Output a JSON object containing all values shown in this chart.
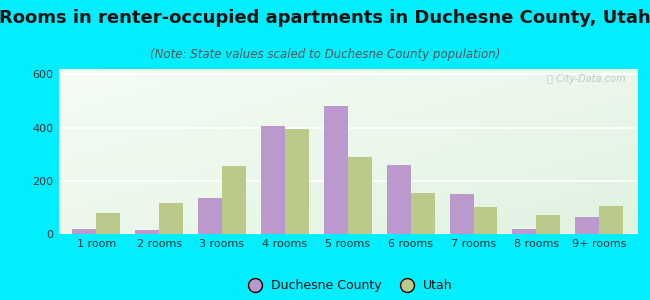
{
  "title": "Rooms in renter-occupied apartments in Duchesne County, Utah",
  "subtitle": "(Note: State values scaled to Duchesne County population)",
  "categories": [
    "1 room",
    "2 rooms",
    "3 rooms",
    "4 rooms",
    "5 rooms",
    "6 rooms",
    "7 rooms",
    "8 rooms",
    "9+ rooms"
  ],
  "duchesne_values": [
    20,
    15,
    135,
    405,
    480,
    260,
    150,
    20,
    65
  ],
  "utah_values": [
    80,
    115,
    255,
    395,
    290,
    155,
    100,
    70,
    105
  ],
  "duchesne_color": "#bb99cc",
  "utah_color": "#bbc98a",
  "background_color": "#00eeff",
  "ylim": [
    0,
    620
  ],
  "yticks": [
    0,
    200,
    400,
    600
  ],
  "bar_width": 0.38,
  "title_fontsize": 13,
  "subtitle_fontsize": 8.5,
  "axis_fontsize": 8,
  "legend_fontsize": 9
}
